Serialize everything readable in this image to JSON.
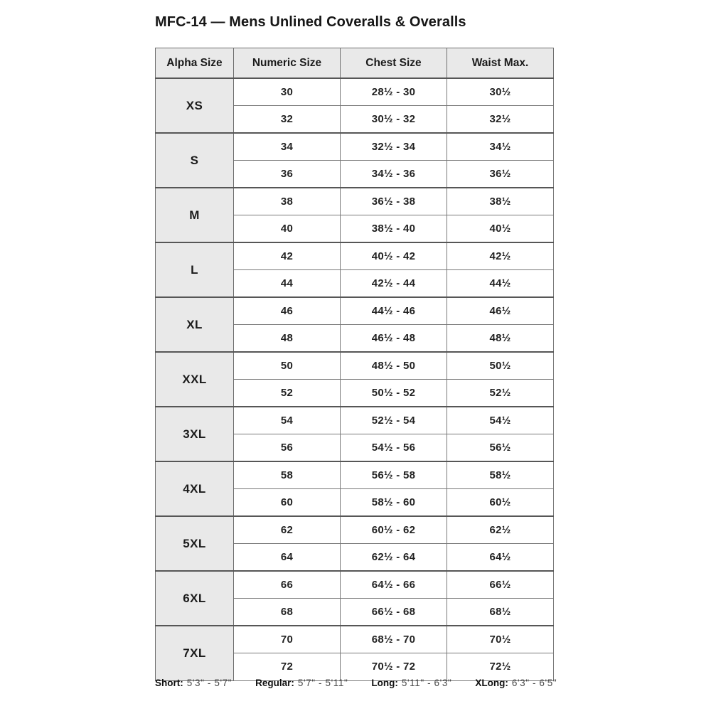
{
  "title": "MFC-14 — Mens Unlined Coveralls & Overalls",
  "colors": {
    "header_bg": "#e9e9e9",
    "alpha_cell_bg": "#e9e9e9",
    "border_dark": "#565656",
    "border_light": "#787878",
    "title_text": "#161616",
    "cell_text": "#222222",
    "key_value_text": "#4a4a4a"
  },
  "table": {
    "headers": [
      "Alpha Size",
      "Numeric Size",
      "Chest Size",
      "Waist Max."
    ],
    "groups": [
      {
        "alpha": "XS",
        "rows": [
          [
            "30",
            "28½ - 30",
            "30½"
          ],
          [
            "32",
            "30½ - 32",
            "32½"
          ]
        ]
      },
      {
        "alpha": "S",
        "rows": [
          [
            "34",
            "32½ - 34",
            "34½"
          ],
          [
            "36",
            "34½ - 36",
            "36½"
          ]
        ]
      },
      {
        "alpha": "M",
        "rows": [
          [
            "38",
            "36½ - 38",
            "38½"
          ],
          [
            "40",
            "38½ - 40",
            "40½"
          ]
        ]
      },
      {
        "alpha": "L",
        "rows": [
          [
            "42",
            "40½ - 42",
            "42½"
          ],
          [
            "44",
            "42½ - 44",
            "44½"
          ]
        ]
      },
      {
        "alpha": "XL",
        "rows": [
          [
            "46",
            "44½ - 46",
            "46½"
          ],
          [
            "48",
            "46½ - 48",
            "48½"
          ]
        ]
      },
      {
        "alpha": "XXL",
        "rows": [
          [
            "50",
            "48½ - 50",
            "50½"
          ],
          [
            "52",
            "50½ - 52",
            "52½"
          ]
        ]
      },
      {
        "alpha": "3XL",
        "rows": [
          [
            "54",
            "52½ - 54",
            "54½"
          ],
          [
            "56",
            "54½ - 56",
            "56½"
          ]
        ]
      },
      {
        "alpha": "4XL",
        "rows": [
          [
            "58",
            "56½ - 58",
            "58½"
          ],
          [
            "60",
            "58½ - 60",
            "60½"
          ]
        ]
      },
      {
        "alpha": "5XL",
        "rows": [
          [
            "62",
            "60½ - 62",
            "62½"
          ],
          [
            "64",
            "62½ - 64",
            "64½"
          ]
        ]
      },
      {
        "alpha": "6XL",
        "rows": [
          [
            "66",
            "64½ - 66",
            "66½"
          ],
          [
            "68",
            "66½ - 68",
            "68½"
          ]
        ]
      },
      {
        "alpha": "7XL",
        "rows": [
          [
            "70",
            "68½ - 70",
            "70½"
          ],
          [
            "72",
            "70½ - 72",
            "72½"
          ]
        ]
      }
    ]
  },
  "height_key": {
    "items": [
      {
        "label": "Short:",
        "value": "5'3\" - 5'7\""
      },
      {
        "label": "Regular:",
        "value": "5'7\" - 5'11\""
      },
      {
        "label": "Long:",
        "value": "5'11\" - 6'3\""
      },
      {
        "label": "XLong:",
        "value": "6'3\" - 6'5\""
      }
    ]
  }
}
